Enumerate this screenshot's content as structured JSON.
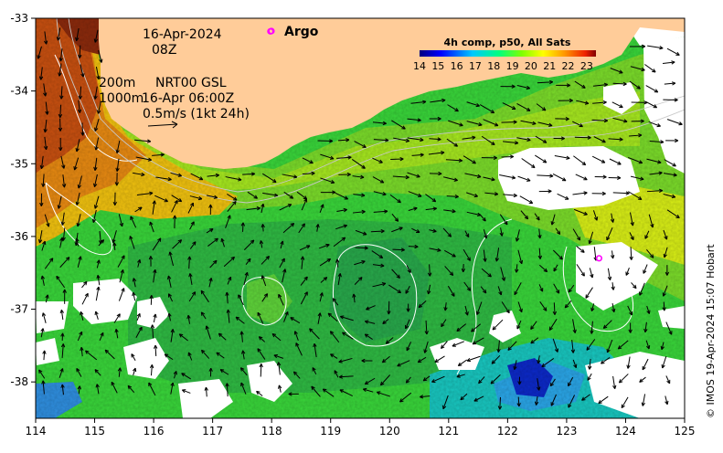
{
  "map": {
    "date_line": "16-Apr-2024",
    "time_line": "08Z",
    "legend_depth_1": "200m",
    "legend_model": "NRT00 GSL",
    "legend_depth_2": "1000m",
    "legend_model_time": "16-Apr 06:00Z",
    "legend_scale": "0.5m/s (1kt 24h)",
    "argo_label": "Argo",
    "colorbar_title": "4h comp, p50, All Sats",
    "colorbar_ticks": [
      "14",
      "15",
      "16",
      "17",
      "18",
      "19",
      "20",
      "21",
      "22",
      "23"
    ],
    "colorbar_range": [
      14,
      23.5
    ],
    "credit": "© IMOS 19-Apr-2024 15:07 Hobart",
    "x_ticks": [
      "114",
      "115",
      "116",
      "117",
      "118",
      "119",
      "120",
      "121",
      "122",
      "123",
      "124",
      "125"
    ],
    "y_ticks": [
      "-33",
      "-34",
      "-35",
      "-36",
      "-37",
      "-38"
    ],
    "lon_range": [
      114,
      125
    ],
    "lat_range": [
      -38.5,
      -33
    ],
    "argo_floats": [
      {
        "lon": 117.98,
        "lat": -33.18
      },
      {
        "lon": 123.55,
        "lat": -36.3
      }
    ],
    "colors": {
      "land": "#ffcc99",
      "argo_marker": "#ff00ff",
      "arrow": "#000000",
      "contour": "#ffffff",
      "isobath": "#bbbbbb"
    }
  }
}
